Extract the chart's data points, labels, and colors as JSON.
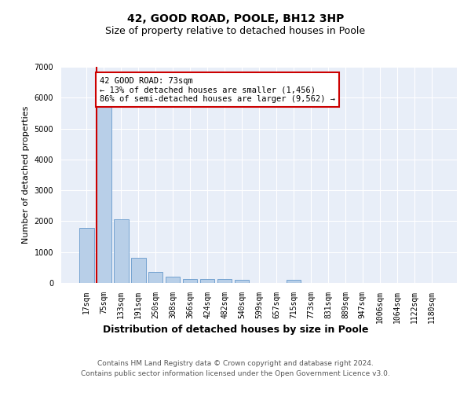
{
  "title": "42, GOOD ROAD, POOLE, BH12 3HP",
  "subtitle": "Size of property relative to detached houses in Poole",
  "xlabel": "Distribution of detached houses by size in Poole",
  "ylabel": "Number of detached properties",
  "categories": [
    "17sqm",
    "75sqm",
    "133sqm",
    "191sqm",
    "250sqm",
    "308sqm",
    "366sqm",
    "424sqm",
    "482sqm",
    "540sqm",
    "599sqm",
    "657sqm",
    "715sqm",
    "773sqm",
    "831sqm",
    "889sqm",
    "947sqm",
    "1006sqm",
    "1064sqm",
    "1122sqm",
    "1180sqm"
  ],
  "values": [
    1780,
    5780,
    2060,
    820,
    360,
    210,
    130,
    120,
    120,
    90,
    0,
    0,
    90,
    0,
    0,
    0,
    0,
    0,
    0,
    0,
    0
  ],
  "bar_color": "#b8cfe8",
  "bar_edge_color": "#6699cc",
  "vline_color": "#cc0000",
  "annotation_text": "42 GOOD ROAD: 73sqm\n← 13% of detached houses are smaller (1,456)\n86% of semi-detached houses are larger (9,562) →",
  "annotation_box_color": "#ffffff",
  "annotation_box_edge": "#cc0000",
  "ylim": [
    0,
    7000
  ],
  "yticks": [
    0,
    1000,
    2000,
    3000,
    4000,
    5000,
    6000,
    7000
  ],
  "bg_color": "#e8eef8",
  "grid_color": "#ffffff",
  "footer_line1": "Contains HM Land Registry data © Crown copyright and database right 2024.",
  "footer_line2": "Contains public sector information licensed under the Open Government Licence v3.0.",
  "title_fontsize": 10,
  "subtitle_fontsize": 9,
  "xlabel_fontsize": 9,
  "ylabel_fontsize": 8,
  "tick_fontsize": 7,
  "annotation_fontsize": 7.5,
  "footer_fontsize": 6.5
}
